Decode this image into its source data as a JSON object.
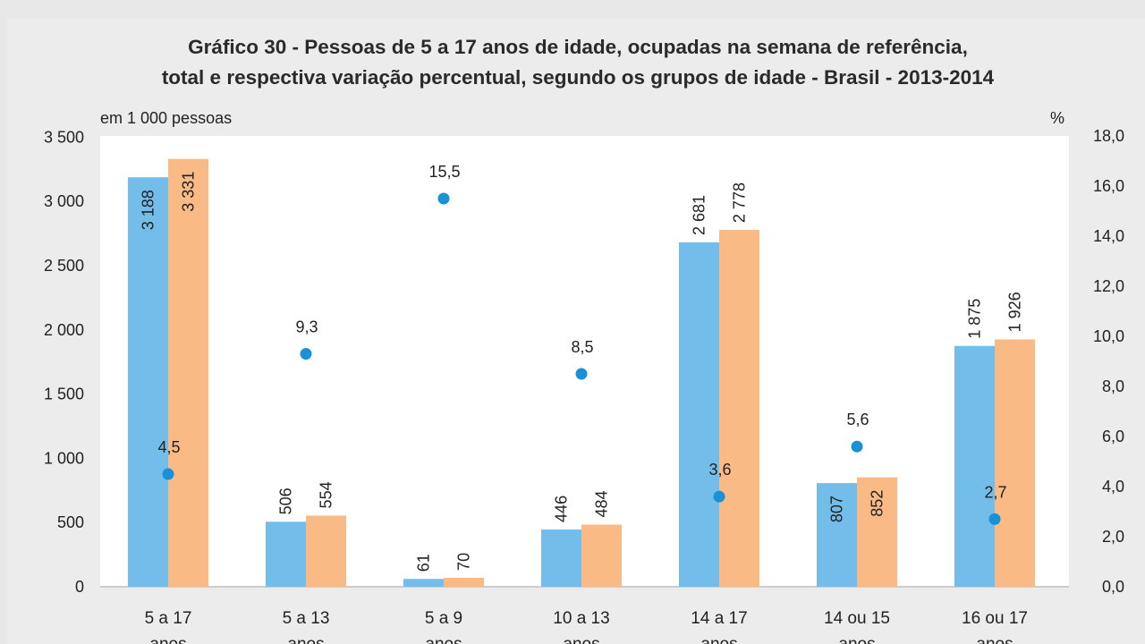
{
  "title_lines": [
    "Gráfico 30 - Pessoas de 5 a 17 anos de idade, ocupadas na semana de referência,",
    "total e respectiva variação percentual, segundo os grupos de idade - Brasil - 2013-2014"
  ],
  "left_unit": "em 1 000 pessoas",
  "right_unit": "%",
  "colors": {
    "bar_2013": "#72bde9",
    "bar_2014": "#f9ba85",
    "point": "#1a90d8"
  },
  "chart_data": {
    "type": "bar",
    "title": "Gráfico 30 - Pessoas de 5 a 17 anos de idade, ocupadas na semana de referência, total e respectiva variação percentual, segundo os grupos de idade - Brasil - 2013-2014",
    "categories": [
      [
        "5 a 17",
        "anos"
      ],
      [
        "5 a 13",
        "anos"
      ],
      [
        "5 a  9",
        "anos"
      ],
      [
        "10 a 13",
        "anos"
      ],
      [
        "14 a 17",
        "anos"
      ],
      [
        "14 ou 15",
        "anos"
      ],
      [
        "16 ou 17",
        "anos"
      ]
    ],
    "series": [
      {
        "values": [
          3188,
          506,
          61,
          446,
          2681,
          807,
          1875
        ],
        "labels": [
          "3 188",
          "506",
          "61",
          "446",
          "2 681",
          "807",
          "1 875"
        ],
        "axis": "left",
        "kind": "bar"
      },
      {
        "values": [
          3331,
          554,
          70,
          484,
          2778,
          852,
          1926
        ],
        "labels": [
          "3 331",
          "554",
          "70",
          "484",
          "2 778",
          "852",
          "1 926"
        ],
        "axis": "left",
        "kind": "bar"
      },
      {
        "values": [
          4.5,
          9.3,
          15.5,
          8.5,
          3.6,
          5.6,
          2.7
        ],
        "labels": [
          "4,5",
          "9,3",
          "15,5",
          "8,5",
          "3,6",
          "5,6",
          "2,7"
        ],
        "axis": "right",
        "kind": "point"
      }
    ],
    "y_left": {
      "min": 0,
      "max": 3500,
      "ticks": [
        0,
        500,
        1000,
        1500,
        2000,
        2500,
        3000,
        3500
      ],
      "tick_labels": [
        "0",
        "500",
        "1 000",
        "1 500",
        "2 000",
        "2 500",
        "3 000",
        "3 500"
      ]
    },
    "y_right": {
      "min": 0,
      "max": 18,
      "ticks": [
        0,
        2,
        4,
        6,
        8,
        10,
        12,
        14,
        16,
        18
      ],
      "tick_labels": [
        "0,0",
        "2,0",
        "4,0",
        "6,0",
        "8,0",
        "10,0",
        "12,0",
        "14,0",
        "16,0",
        "18,0"
      ]
    },
    "grid": false,
    "legend": "none"
  }
}
